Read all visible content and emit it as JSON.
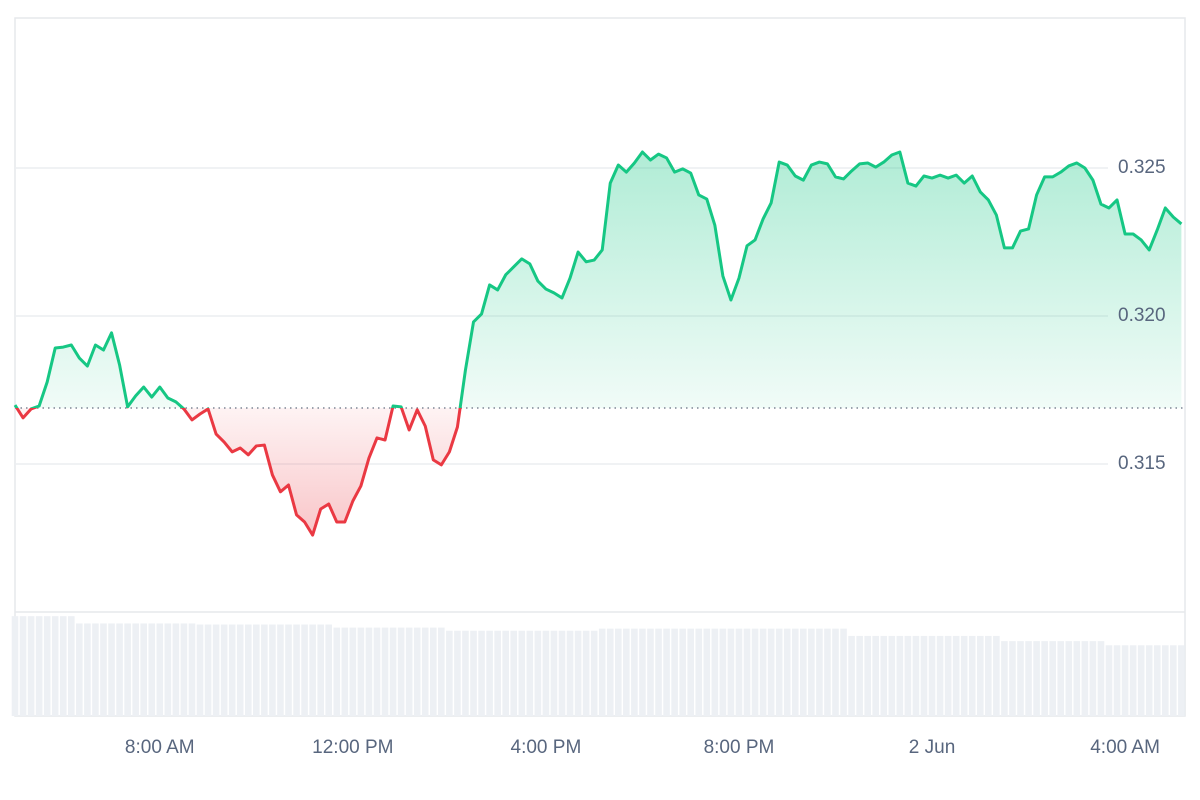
{
  "chart_data": {
    "type": "line",
    "color_up": "#16c784",
    "color_down": "#ea3943",
    "baseline": 0.31689,
    "x": [
      300,
      310,
      320,
      330,
      340,
      350,
      360,
      370,
      380,
      390,
      400,
      410,
      420,
      430,
      440,
      450,
      460,
      470,
      480,
      490,
      500,
      510,
      520,
      530,
      540,
      550,
      560,
      570,
      580,
      590,
      600,
      610,
      620,
      630,
      640,
      650,
      660,
      670,
      680,
      690,
      700,
      710,
      720,
      730,
      740,
      750,
      760,
      770,
      780,
      790,
      800,
      810,
      820,
      830,
      840,
      850,
      860,
      870,
      880,
      890,
      900,
      910,
      920,
      930,
      940,
      950,
      960,
      970,
      980,
      990,
      1000,
      1010,
      1020,
      1030,
      1040,
      1050,
      1060,
      1070,
      1080,
      1090,
      1100,
      1110,
      1120,
      1130,
      1140,
      1150,
      1160,
      1170,
      1180,
      1190,
      1200,
      1210,
      1220,
      1230,
      1240,
      1250,
      1260,
      1270,
      1280,
      1290,
      1300,
      1310,
      1320,
      1330,
      1340,
      1350,
      1360,
      1370,
      1380,
      1390,
      1400,
      1410,
      1420,
      1430,
      1440,
      1450,
      1460,
      1470,
      1480,
      1490,
      1500,
      1510,
      1520,
      1530,
      1540,
      1550,
      1560,
      1570,
      1580,
      1590,
      1600,
      1610,
      1620,
      1630,
      1640,
      1650,
      1660,
      1670,
      1680,
      1690,
      1700,
      1710,
      1720,
      1730,
      1740,
      1750
    ],
    "values": [
      0.31699,
      0.31656,
      0.31686,
      0.31696,
      0.31777,
      0.31892,
      0.31895,
      0.31902,
      0.31858,
      0.31831,
      0.31902,
      0.31885,
      0.31943,
      0.31835,
      0.31693,
      0.3173,
      0.3176,
      0.31726,
      0.3176,
      0.31723,
      0.3171,
      0.31686,
      0.31649,
      0.31669,
      0.31686,
      0.31601,
      0.31574,
      0.31541,
      0.31554,
      0.31531,
      0.31561,
      0.31564,
      0.31463,
      0.31406,
      0.31429,
      0.31328,
      0.31304,
      0.3126,
      0.31348,
      0.31365,
      0.31304,
      0.31304,
      0.31375,
      0.31426,
      0.3152,
      0.31588,
      0.31581,
      0.31696,
      0.31693,
      0.31615,
      0.31683,
      0.31628,
      0.31514,
      0.31497,
      0.31541,
      0.31625,
      0.31818,
      0.3198,
      0.32007,
      0.32105,
      0.32088,
      0.32139,
      0.32166,
      0.32193,
      0.32176,
      0.32118,
      0.32091,
      0.32078,
      0.32061,
      0.32128,
      0.32216,
      0.32183,
      0.32189,
      0.32223,
      0.32449,
      0.3251,
      0.32486,
      0.32517,
      0.32554,
      0.32527,
      0.32547,
      0.32534,
      0.32486,
      0.32497,
      0.32483,
      0.32409,
      0.32395,
      0.32307,
      0.32135,
      0.32054,
      0.32128,
      0.32237,
      0.32257,
      0.32328,
      0.32382,
      0.3252,
      0.3251,
      0.32473,
      0.32459,
      0.3251,
      0.3252,
      0.32514,
      0.3247,
      0.32463,
      0.3249,
      0.32514,
      0.32517,
      0.32503,
      0.3252,
      0.32544,
      0.32554,
      0.32449,
      0.32439,
      0.32473,
      0.32466,
      0.32476,
      0.32466,
      0.32476,
      0.32449,
      0.32473,
      0.32419,
      0.32392,
      0.32341,
      0.3223,
      0.3223,
      0.32287,
      0.32294,
      0.32409,
      0.3247,
      0.3247,
      0.32486,
      0.32507,
      0.32517,
      0.325,
      0.32459,
      0.32378,
      0.32365,
      0.32392,
      0.32277,
      0.32277,
      0.32257,
      0.32223,
      0.32291,
      0.32365,
      0.32334,
      0.32311
    ],
    "volume": [
      96,
      96,
      96,
      96,
      96,
      96,
      96,
      96,
      89,
      89,
      89,
      89,
      89,
      89,
      89,
      89,
      89,
      89,
      89,
      89,
      89,
      89,
      89,
      88,
      88,
      88,
      88,
      88,
      88,
      88,
      88,
      88,
      88,
      88,
      88,
      88,
      88,
      88,
      88,
      88,
      85,
      85,
      85,
      85,
      85,
      85,
      85,
      85,
      85,
      85,
      85,
      85,
      85,
      85,
      82,
      82,
      82,
      82,
      82,
      82,
      82,
      82,
      82,
      82,
      82,
      82,
      82,
      82,
      82,
      82,
      82,
      82,
      82,
      84,
      84,
      84,
      84,
      84,
      84,
      84,
      84,
      84,
      84,
      84,
      84,
      84,
      84,
      84,
      84,
      84,
      84,
      84,
      84,
      84,
      84,
      84,
      84,
      84,
      84,
      84,
      84,
      84,
      84,
      84,
      77,
      77,
      77,
      77,
      77,
      77,
      77,
      77,
      77,
      77,
      77,
      77,
      77,
      77,
      77,
      77,
      77,
      77,
      77,
      72,
      72,
      72,
      72,
      72,
      72,
      72,
      72,
      72,
      72,
      72,
      72,
      72,
      68,
      68,
      68,
      68,
      68,
      68,
      68,
      68,
      68,
      68
    ],
    "volume_lim": [
      0,
      100
    ],
    "volume_color": "#edf0f4",
    "xlim": [
      300,
      1752
    ],
    "xticks": [
      {
        "value": 480,
        "label": "8:00 AM"
      },
      {
        "value": 720,
        "label": "12:00 PM"
      },
      {
        "value": 960,
        "label": "4:00 PM"
      },
      {
        "value": 1200,
        "label": "8:00 PM"
      },
      {
        "value": 1440,
        "label": "2 Jun"
      },
      {
        "value": 1680,
        "label": "4:00 AM"
      }
    ],
    "ylim": [
      0.31,
      0.33
    ],
    "yticks": [
      0.315,
      {
        "value": 0.32,
        "label": "0.320"
      },
      0.325
    ],
    "grid": true
  }
}
